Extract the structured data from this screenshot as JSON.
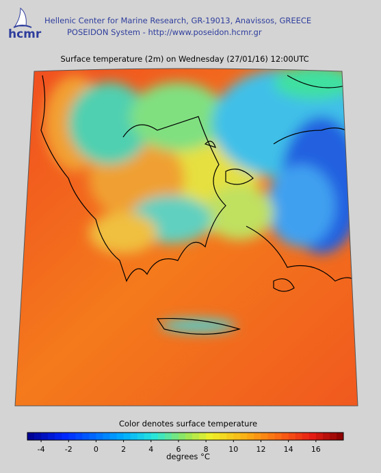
{
  "header": {
    "logo": "hcmr",
    "line1": "Hellenic Center for Marine Research, GR-19013, Anavissos, GREECE",
    "line2": "POSEIDON System - http://www.poseidon.hcmr.gr"
  },
  "map": {
    "title": "Surface temperature (2m) on Wednesday (27/01/16) 12:00UTC"
  },
  "colorbar": {
    "caption": "Color denotes surface temperature",
    "range": [
      -5,
      18
    ],
    "ticks": [
      -4,
      -2,
      0,
      2,
      4,
      6,
      8,
      10,
      12,
      14,
      16
    ],
    "unit_label": "degrees °C"
  }
}
